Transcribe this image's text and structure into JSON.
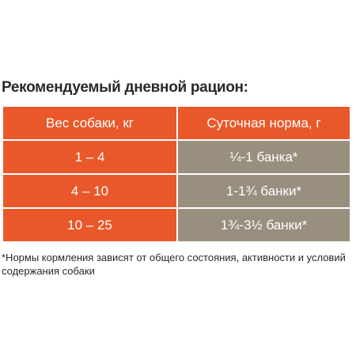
{
  "title": "Рекомендуемый дневной рацион:",
  "table": {
    "headers": [
      "Вес собаки, кг",
      "Суточная норма, г"
    ],
    "rows": [
      [
        "1 – 4",
        "¼-1 банка*"
      ],
      [
        "4 – 10",
        "1-1¾ банки*"
      ],
      [
        "10 – 25",
        "1¾-3½ банки*"
      ]
    ]
  },
  "footnote": "*Нормы кормления зависят от общего состояния, активности и условий содержания собаки",
  "colors": {
    "accent_orange": "#e8582a",
    "muted_taupe": "#998f7f"
  }
}
